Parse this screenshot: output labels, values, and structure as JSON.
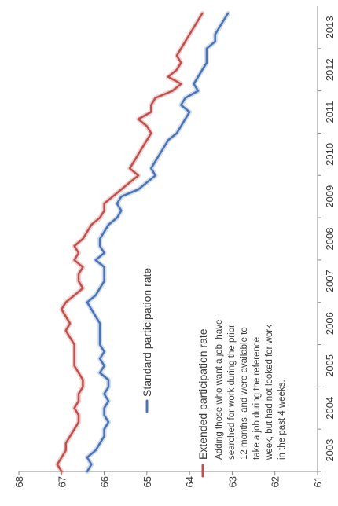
{
  "chart_data": {
    "type": "line",
    "orientation": "rotated-90-clockwise",
    "title": "",
    "xlabel": "",
    "ylabel": "",
    "x_tick_labels": [
      "2003",
      "2004",
      "2005",
      "2006",
      "2007",
      "2008",
      "2009",
      "2010",
      "2011",
      "2012",
      "2013"
    ],
    "y_tick_labels": [
      "68",
      "67",
      "66",
      "65",
      "64",
      "63",
      "62",
      "61"
    ],
    "xlim": [
      "2003-01",
      "2013-12"
    ],
    "ylim": [
      61,
      68
    ],
    "grid": false,
    "legend_placement": "center-right",
    "annotation": "Adding those who want a job, have searched for work during the prior 12 months, and were available to take a job during the reference week, but had not looked for work in the past 4 weeks.",
    "series": [
      {
        "name": "Standard participation rate",
        "color": "#4a74b4",
        "points": [
          [
            "2003-01",
            66.4
          ],
          [
            "2003-03",
            66.3
          ],
          [
            "2003-05",
            66.4
          ],
          [
            "2003-07",
            66.2
          ],
          [
            "2003-09",
            66.1
          ],
          [
            "2003-11",
            66.0
          ],
          [
            "2004-01",
            66.0
          ],
          [
            "2004-03",
            65.9
          ],
          [
            "2004-05",
            66.0
          ],
          [
            "2004-07",
            66.0
          ],
          [
            "2004-09",
            65.9
          ],
          [
            "2004-11",
            66.0
          ],
          [
            "2005-01",
            65.9
          ],
          [
            "2005-03",
            65.9
          ],
          [
            "2005-05",
            66.1
          ],
          [
            "2005-07",
            66.0
          ],
          [
            "2005-09",
            66.1
          ],
          [
            "2005-11",
            66.0
          ],
          [
            "2006-01",
            66.1
          ],
          [
            "2006-03",
            66.1
          ],
          [
            "2006-05",
            66.1
          ],
          [
            "2006-07",
            66.1
          ],
          [
            "2006-09",
            66.2
          ],
          [
            "2006-11",
            66.3
          ],
          [
            "2007-01",
            66.4
          ],
          [
            "2007-03",
            66.2
          ],
          [
            "2007-05",
            66.1
          ],
          [
            "2007-07",
            66.0
          ],
          [
            "2007-09",
            66.0
          ],
          [
            "2007-11",
            66.0
          ],
          [
            "2008-01",
            66.2
          ],
          [
            "2008-03",
            66.0
          ],
          [
            "2008-05",
            66.1
          ],
          [
            "2008-07",
            66.1
          ],
          [
            "2008-09",
            66.0
          ],
          [
            "2008-11",
            65.9
          ],
          [
            "2009-01",
            65.7
          ],
          [
            "2009-03",
            65.6
          ],
          [
            "2009-05",
            65.7
          ],
          [
            "2009-07",
            65.6
          ],
          [
            "2009-09",
            65.2
          ],
          [
            "2009-11",
            65.0
          ],
          [
            "2010-01",
            64.8
          ],
          [
            "2010-03",
            64.9
          ],
          [
            "2010-05",
            64.8
          ],
          [
            "2010-07",
            64.7
          ],
          [
            "2010-09",
            64.6
          ],
          [
            "2010-11",
            64.5
          ],
          [
            "2011-01",
            64.3
          ],
          [
            "2011-03",
            64.2
          ],
          [
            "2011-05",
            64.1
          ],
          [
            "2011-07",
            64.0
          ],
          [
            "2011-09",
            64.2
          ],
          [
            "2011-11",
            64.1
          ],
          [
            "2012-01",
            63.8
          ],
          [
            "2012-03",
            63.9
          ],
          [
            "2012-05",
            63.8
          ],
          [
            "2012-07",
            63.7
          ],
          [
            "2012-09",
            63.6
          ],
          [
            "2012-11",
            63.6
          ],
          [
            "2013-01",
            63.6
          ],
          [
            "2013-03",
            63.4
          ],
          [
            "2013-05",
            63.4
          ],
          [
            "2013-07",
            63.3
          ],
          [
            "2013-09",
            63.2
          ],
          [
            "2013-11",
            63.1
          ]
        ]
      },
      {
        "name": "Extended participation rate",
        "color": "#c0504d",
        "points": [
          [
            "2003-01",
            67.0
          ],
          [
            "2003-03",
            67.1
          ],
          [
            "2003-05",
            67.0
          ],
          [
            "2003-07",
            66.9
          ],
          [
            "2003-09",
            66.9
          ],
          [
            "2003-11",
            66.8
          ],
          [
            "2004-01",
            66.7
          ],
          [
            "2004-03",
            66.6
          ],
          [
            "2004-05",
            66.6
          ],
          [
            "2004-07",
            66.7
          ],
          [
            "2004-09",
            66.6
          ],
          [
            "2004-11",
            66.6
          ],
          [
            "2005-01",
            66.5
          ],
          [
            "2005-03",
            66.5
          ],
          [
            "2005-05",
            66.6
          ],
          [
            "2005-07",
            66.7
          ],
          [
            "2005-09",
            66.7
          ],
          [
            "2005-11",
            66.7
          ],
          [
            "2006-01",
            66.7
          ],
          [
            "2006-03",
            66.8
          ],
          [
            "2006-05",
            66.9
          ],
          [
            "2006-07",
            66.8
          ],
          [
            "2006-09",
            66.9
          ],
          [
            "2006-11",
            67.0
          ],
          [
            "2007-01",
            66.9
          ],
          [
            "2007-03",
            66.7
          ],
          [
            "2007-05",
            66.5
          ],
          [
            "2007-07",
            66.6
          ],
          [
            "2007-09",
            66.6
          ],
          [
            "2007-11",
            66.5
          ],
          [
            "2008-01",
            66.7
          ],
          [
            "2008-03",
            66.6
          ],
          [
            "2008-05",
            66.7
          ],
          [
            "2008-07",
            66.5
          ],
          [
            "2008-09",
            66.4
          ],
          [
            "2008-11",
            66.3
          ],
          [
            "2009-01",
            66.1
          ],
          [
            "2009-03",
            66.0
          ],
          [
            "2009-05",
            66.0
          ],
          [
            "2009-07",
            65.8
          ],
          [
            "2009-09",
            65.6
          ],
          [
            "2009-11",
            65.4
          ],
          [
            "2010-01",
            65.2
          ],
          [
            "2010-03",
            65.4
          ],
          [
            "2010-05",
            65.3
          ],
          [
            "2010-07",
            65.2
          ],
          [
            "2010-09",
            65.1
          ],
          [
            "2010-11",
            65.0
          ],
          [
            "2011-01",
            64.9
          ],
          [
            "2011-03",
            65.0
          ],
          [
            "2011-05",
            65.2
          ],
          [
            "2011-07",
            64.9
          ],
          [
            "2011-09",
            64.9
          ],
          [
            "2011-11",
            64.8
          ],
          [
            "2012-01",
            64.4
          ],
          [
            "2012-03",
            64.2
          ],
          [
            "2012-05",
            64.5
          ],
          [
            "2012-07",
            64.3
          ],
          [
            "2012-09",
            64.2
          ],
          [
            "2012-11",
            64.3
          ],
          [
            "2013-01",
            64.2
          ],
          [
            "2013-03",
            64.1
          ],
          [
            "2013-05",
            64.0
          ],
          [
            "2013-07",
            63.9
          ],
          [
            "2013-09",
            63.8
          ],
          [
            "2013-11",
            63.7
          ]
        ]
      }
    ]
  }
}
